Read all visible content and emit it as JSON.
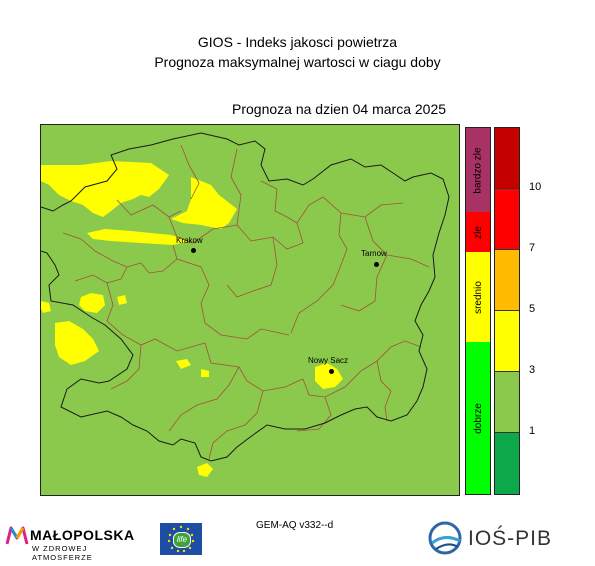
{
  "header": {
    "title_line1": "GIOS - Indeks jakosci powietrza",
    "title_line2": "Prognoza maksymalnej wartosci w ciagu doby",
    "forecast_date": "Prognoza na dzien  04 marca 2025"
  },
  "map": {
    "cities": [
      {
        "key": "krakow",
        "label": "Krakow"
      },
      {
        "key": "tarnow",
        "label": "Tarnow"
      },
      {
        "key": "nowy_sacz",
        "label": "Nowy Sacz"
      }
    ],
    "region_colors": {
      "good": "#8bc94d",
      "moderate": "#ffff00"
    }
  },
  "legend": {
    "categories": [
      {
        "label": "bardzo zle",
        "color": "#a83263"
      },
      {
        "label": "zle",
        "color": "#ff0000"
      },
      {
        "label": "srednio",
        "color": "#ffff00"
      },
      {
        "label": "dobrze",
        "color": "#00ff00"
      }
    ],
    "scale_colors": [
      "#c40000",
      "#ff0000",
      "#ffbb00",
      "#ffff00",
      "#8bc94d",
      "#0ca84a"
    ],
    "tick_labels": [
      "10",
      "7",
      "5",
      "3",
      "1"
    ]
  },
  "footer": {
    "model": "GEM-AQ v332--d",
    "logo_left_name": "MAŁOPOLSKA",
    "logo_left_sub": "W ZDROWEJ ATMOSFERZE",
    "eu_logo_text": "life",
    "logo_right_name": "IOŚ-PIB"
  }
}
